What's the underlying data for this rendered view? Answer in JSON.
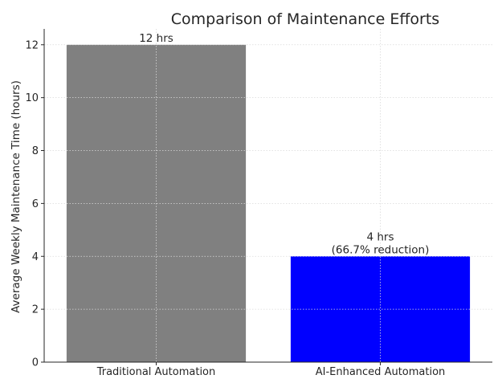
{
  "chart_data": {
    "type": "bar",
    "title": "Comparison of Maintenance Efforts",
    "xlabel": "",
    "ylabel": "Average Weekly Maintenance Time (hours)",
    "categories": [
      "Traditional Automation",
      "AI-Enhanced Automation"
    ],
    "values": [
      12,
      4
    ],
    "bar_colors": [
      "#808080",
      "#0000ff"
    ],
    "data_labels": [
      [
        "12 hrs"
      ],
      [
        "4 hrs",
        "(66.7% reduction)"
      ]
    ],
    "ylim": [
      0,
      12.6
    ],
    "yticks": [
      0,
      2,
      4,
      6,
      8,
      10,
      12
    ],
    "grid": true
  }
}
